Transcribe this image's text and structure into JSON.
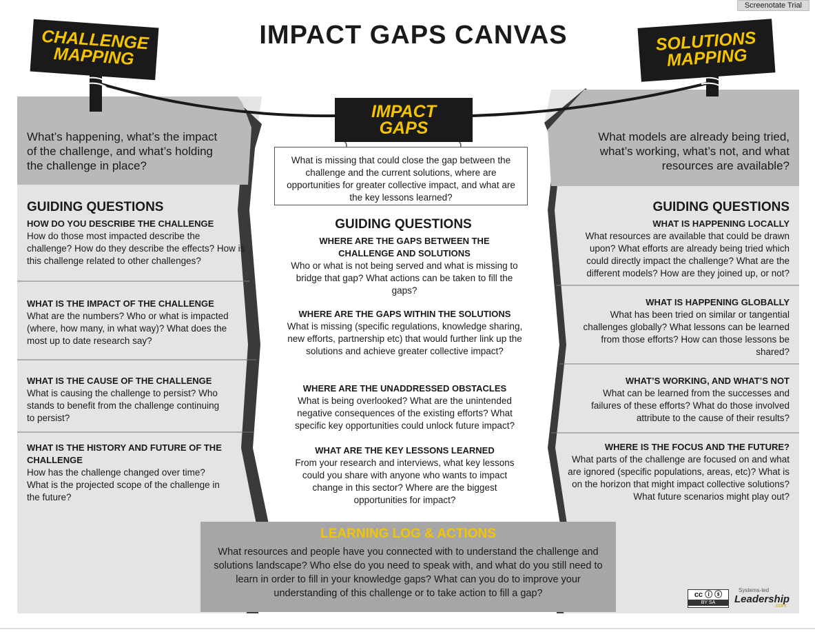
{
  "trial_label": "Screenotate Trial",
  "title": "IMPACT GAPS CANVAS",
  "signs": {
    "left": [
      "CHALLENGE",
      "MAPPING"
    ],
    "center": [
      "IMPACT",
      "GAPS"
    ],
    "right": [
      "SOLUTIONS",
      "MAPPING"
    ]
  },
  "left": {
    "intro": "What’s happening, what’s the impact of the challenge, and what’s holding the challenge in place?",
    "guiding": "GUIDING QUESTIONS",
    "sections": [
      {
        "heading": "HOW DO YOU DESCRIBE THE CHALLENGE",
        "body": "How do those most impacted describe the challenge? How do they describe the effects? How is this challenge related to other challenges?"
      },
      {
        "heading": "WHAT IS THE IMPACT OF THE CHALLENGE",
        "body": "What are the numbers? Who or what is impacted (where, how many, in what way)? What does the most up to date research say?"
      },
      {
        "heading": "WHAT IS THE CAUSE OF THE CHALLENGE",
        "body": "What is causing the challenge to persist? Who stands to benefit from the challenge continuing to persist?"
      },
      {
        "heading": "WHAT IS THE HISTORY AND FUTURE OF THE CHALLENGE",
        "body": "How has the challenge changed over time? What is the projected scope of the challenge in the future?"
      }
    ]
  },
  "center": {
    "intro": "What is missing that could close the gap between the challenge and the current solutions, where are opportunities for greater collective impact, and what are the key lessons learned?",
    "guiding": "GUIDING QUESTIONS",
    "sections": [
      {
        "heading": "WHERE ARE THE GAPS BETWEEN THE CHALLENGE AND SOLUTIONS",
        "body": "Who or what is not being served and what is missing to bridge that gap? What actions can be taken to fill the gaps?"
      },
      {
        "heading": "WHERE ARE THE GAPS WITHIN THE SOLUTIONS",
        "body": "What is missing (specific regulations, knowledge sharing, new efforts, partnership etc) that would further link up the solutions and achieve greater collective impact?"
      },
      {
        "heading": "WHERE ARE THE UNADDRESSED OBSTACLES",
        "body": "What is being overlooked? What are the unintended negative consequences of the existing efforts? What specific key opportunities could unlock future impact?"
      },
      {
        "heading": "WHAT ARE THE KEY LESSONS LEARNED",
        "body": "From your research and interviews, what key lessons could you share with anyone who wants to impact change in this sector? Where are the biggest opportunities for impact?"
      }
    ]
  },
  "right": {
    "intro": "What models are already being tried, what’s working, what’s not, and what resources are available?",
    "guiding": "GUIDING QUESTIONS",
    "sections": [
      {
        "heading": "WHAT IS HAPPENING LOCALLY",
        "body": "What resources are available that could be drawn upon? What efforts are already being tried which could directly impact the challenge? What are the different models? How are they joined up, or not?"
      },
      {
        "heading": "WHAT IS HAPPENING GLOBALLY",
        "body": "What has been tried on similar or tangential challenges globally? What lessons can be learned from those efforts? How can those lessons be shared?"
      },
      {
        "heading": "WHAT’S WORKING, AND WHAT’S NOT",
        "body": "What can be learned from the successes and failures of these efforts? What do those involved attribute to the cause of their results?"
      },
      {
        "heading": "WHERE IS THE FOCUS AND THE FUTURE?",
        "body": "What parts of the challenge are focused on and what are ignored (specific populations, areas, etc)? What is on the horizon that might impact collective solutions? What future scenarios might play out?"
      }
    ]
  },
  "log": {
    "title": "LEARNING LOG & ACTIONS",
    "body": "What resources and people have you connected with to understand the challenge and solutions landscape? Who else do you need to speak with, and what do you still need to learn in order to fill in your knowledge gaps? What can you do to improve your understanding of this challenge or to take action to fill a gap?"
  },
  "footer": {
    "license_main": "cc ⓘ ⓢ",
    "license_sub": "BY   SA",
    "brand_small": "Systems-led",
    "brand_main": "Leadership",
    "brand_domain": ".com"
  },
  "colors": {
    "dark_band": "#b9b9b9",
    "light_panel": "#e4e4e4",
    "fold": "#3a3a3a",
    "sign_bg": "#1a1a1a",
    "sign_text": "#f5c400",
    "log_bg": "#a6a6a6"
  }
}
